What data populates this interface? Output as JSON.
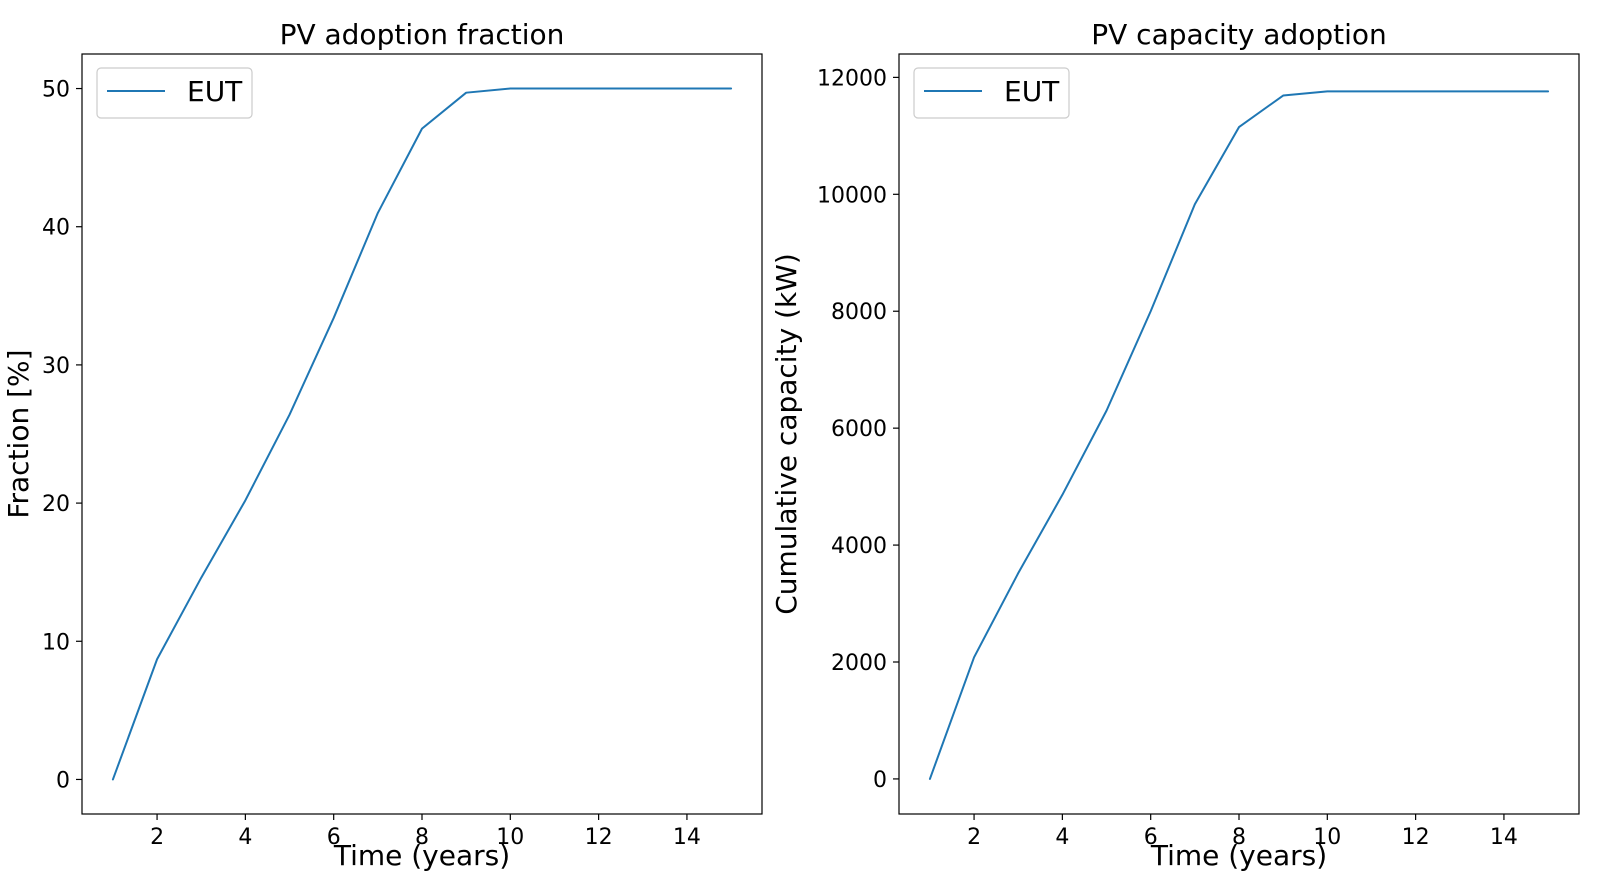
{
  "chart_data": [
    {
      "type": "line",
      "title": "PV adoption fraction",
      "xlabel": "Time (years)",
      "ylabel": "Fraction [%]",
      "xlim": [
        0.3,
        15.7
      ],
      "ylim": [
        -2.5,
        52.5
      ],
      "xticks": [
        2,
        4,
        6,
        8,
        10,
        12,
        14
      ],
      "yticks": [
        0,
        10,
        20,
        30,
        40,
        50
      ],
      "grid": false,
      "legend_position": "top-left",
      "series": [
        {
          "name": "EUT",
          "color": "#1f77b4",
          "x": [
            1,
            2,
            3,
            4,
            5,
            6,
            7,
            8,
            9,
            10,
            11,
            12,
            13,
            14,
            15
          ],
          "y": [
            0,
            8.7,
            14.6,
            20.2,
            26.4,
            33.4,
            41.0,
            47.1,
            49.7,
            50.0,
            50.0,
            50.0,
            50.0,
            50.0,
            50.0
          ]
        }
      ]
    },
    {
      "type": "line",
      "title": "PV capacity adoption",
      "xlabel": "Time (years)",
      "ylabel": "Cumulative capacity (kW)",
      "xlim": [
        0.3,
        15.7
      ],
      "ylim": [
        -600,
        12400
      ],
      "xticks": [
        2,
        4,
        6,
        8,
        10,
        12,
        14
      ],
      "yticks": [
        0,
        2000,
        4000,
        6000,
        8000,
        10000,
        12000
      ],
      "grid": false,
      "legend_position": "top-left",
      "series": [
        {
          "name": "EUT",
          "color": "#1f77b4",
          "x": [
            1,
            2,
            3,
            4,
            5,
            6,
            7,
            8,
            9,
            10,
            11,
            12,
            13,
            14,
            15
          ],
          "y": [
            0,
            2080,
            3520,
            4860,
            6300,
            8000,
            9830,
            11150,
            11690,
            11760,
            11760,
            11760,
            11760,
            11760,
            11760
          ]
        }
      ]
    }
  ]
}
